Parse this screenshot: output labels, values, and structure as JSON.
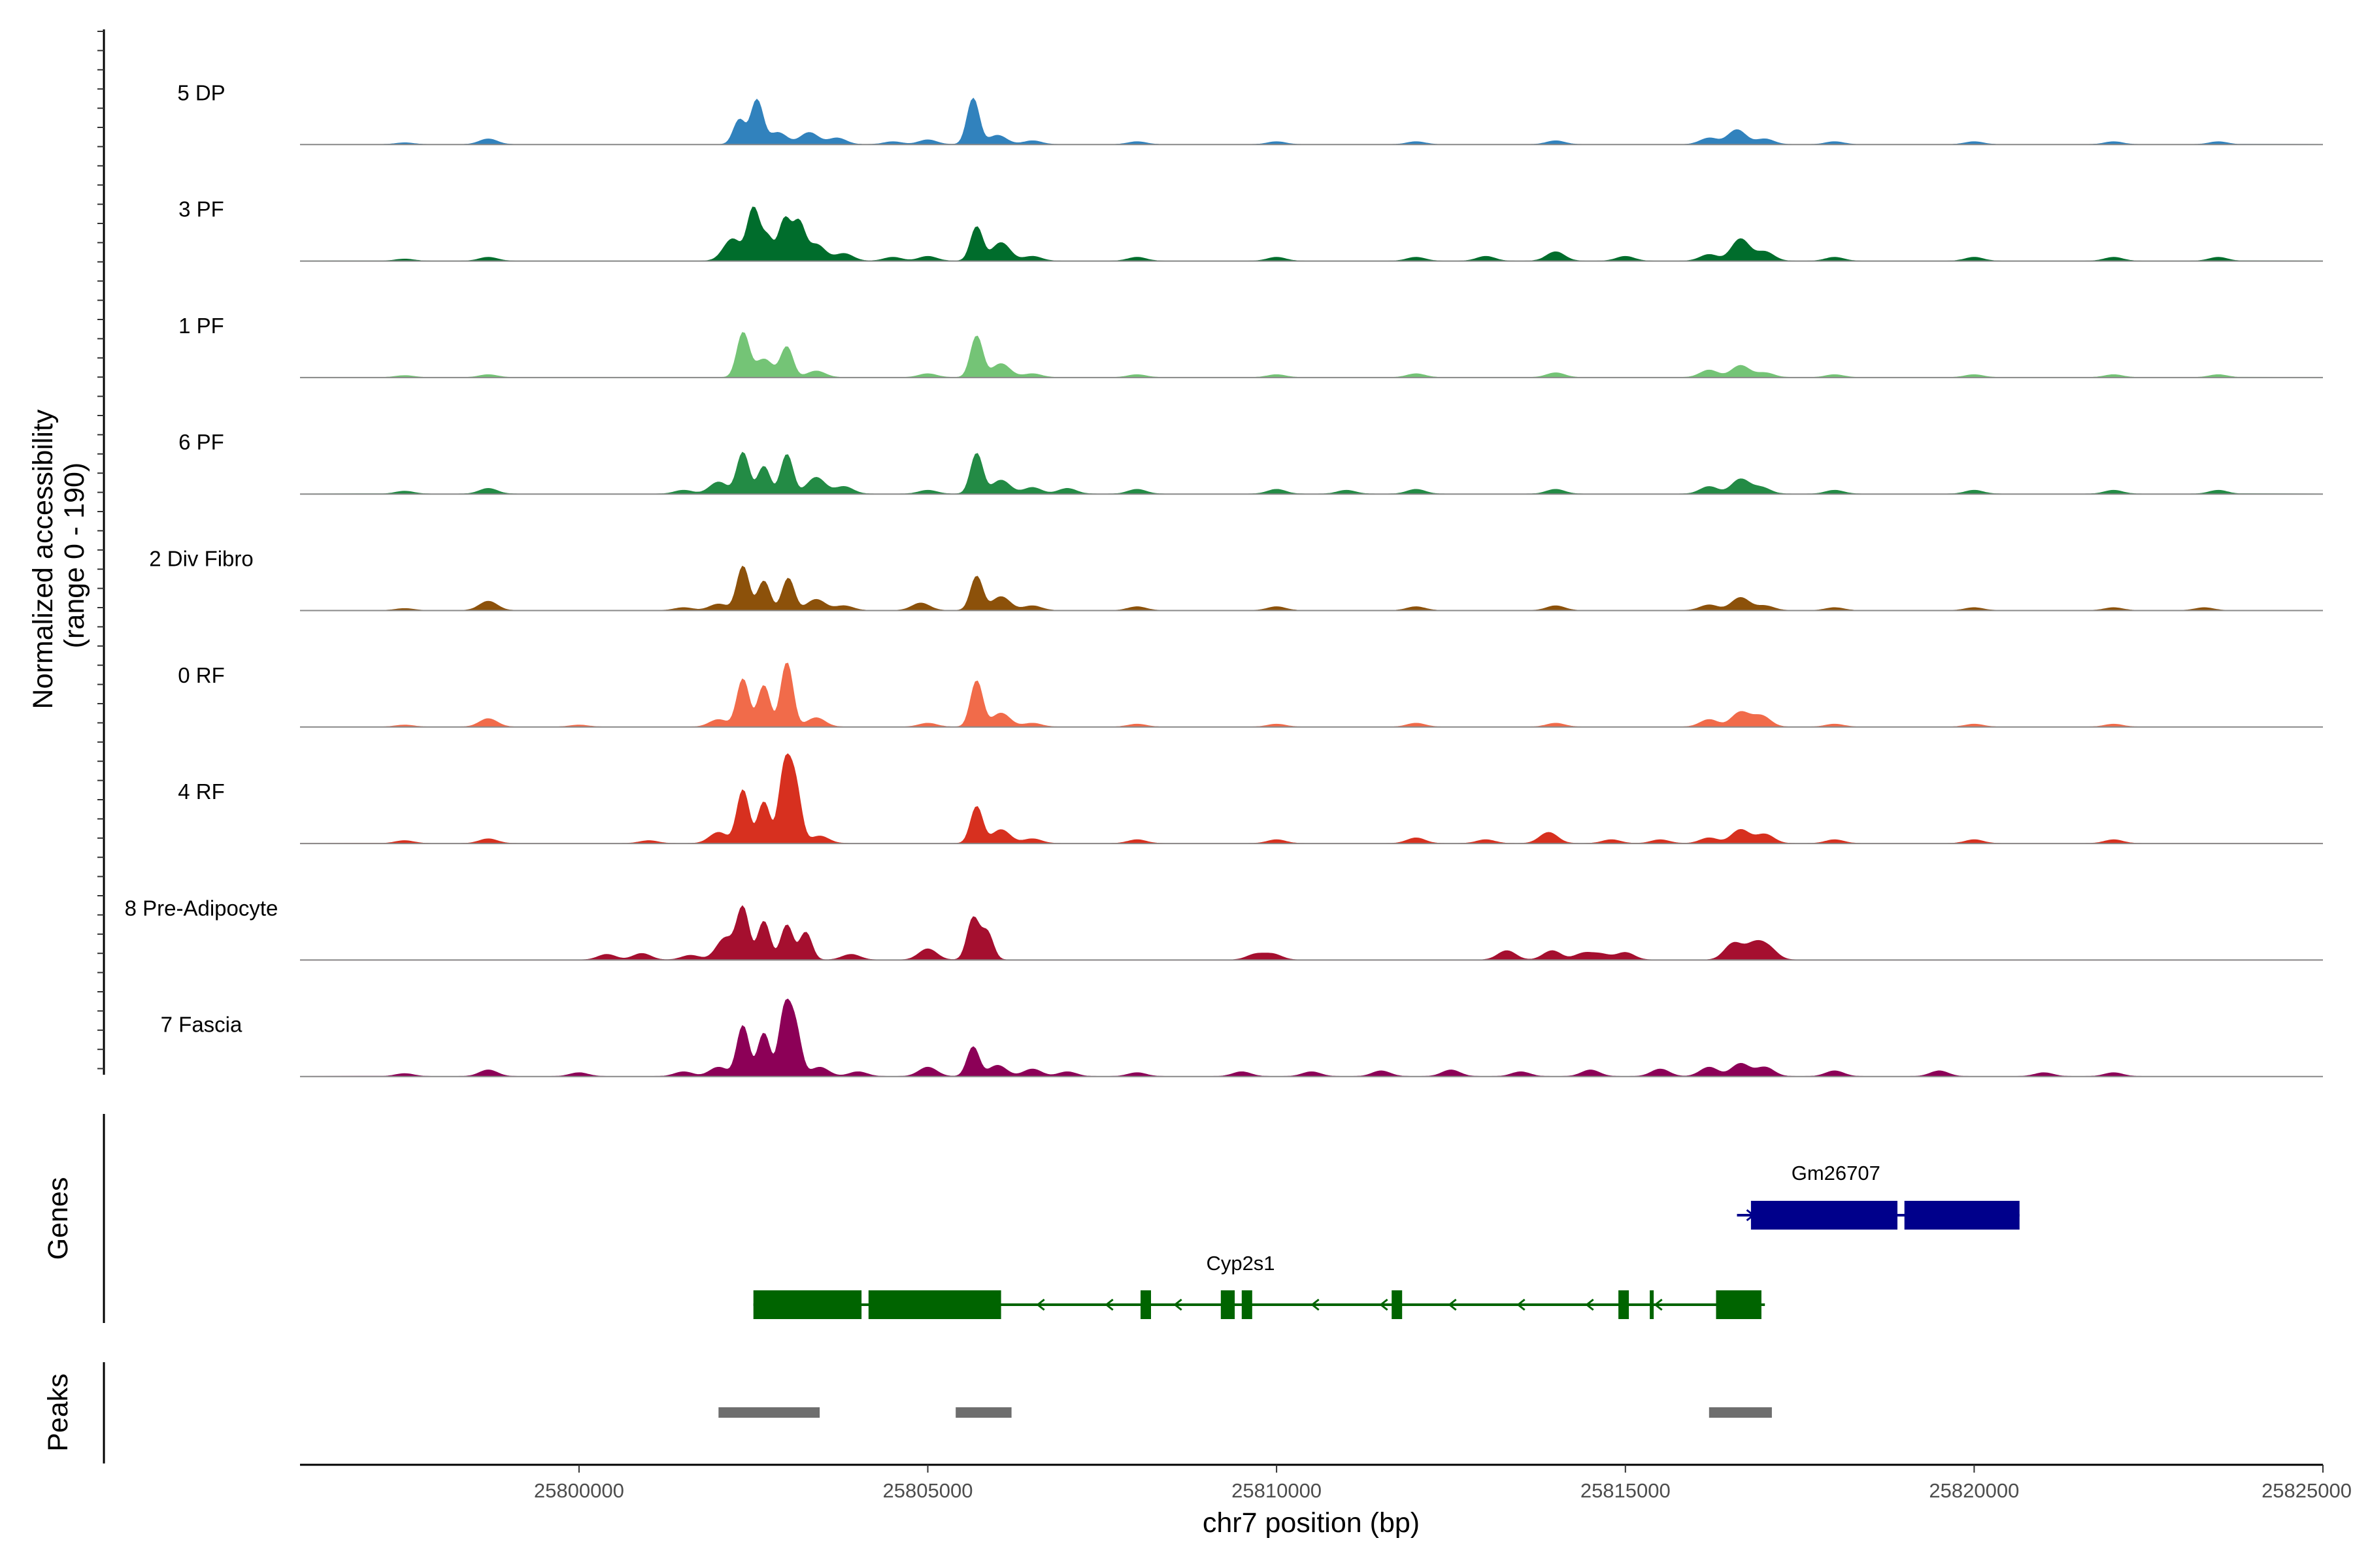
{
  "chart_data": {
    "type": "area",
    "title": "",
    "region": "chr7:25796000-25825000",
    "ylabel_line1": "Normalized accessibility",
    "ylabel_line2": "(range 0 - 190)",
    "y_range": [
      0,
      190
    ],
    "xlabel": "chr7 position (bp)",
    "xlim": [
      25796000,
      25825000
    ],
    "xticks": [
      25800000,
      25805000,
      25810000,
      25815000,
      25820000,
      25825000
    ],
    "xtick_labels": [
      "25800000",
      "25805000",
      "25810000",
      "25815000",
      "25820000",
      "25825000"
    ],
    "tracks": [
      {
        "name": "5 DP",
        "color": "#3182BD",
        "peaks": [
          [
            25797500,
            1.8
          ],
          [
            25798700,
            6
          ],
          [
            25802300,
            27
          ],
          [
            25802550,
            48
          ],
          [
            25802850,
            13
          ],
          [
            25803300,
            13
          ],
          [
            25803700,
            7
          ],
          [
            25804500,
            3
          ],
          [
            25805000,
            5
          ],
          [
            25805650,
            50
          ],
          [
            25806000,
            10
          ],
          [
            25806500,
            4
          ],
          [
            25808000,
            3
          ],
          [
            25810000,
            3
          ],
          [
            25812000,
            3
          ],
          [
            25814000,
            4
          ],
          [
            25816200,
            7
          ],
          [
            25816600,
            16
          ],
          [
            25817000,
            6
          ],
          [
            25818000,
            3
          ],
          [
            25820000,
            3
          ],
          [
            25822000,
            3
          ],
          [
            25823500,
            3
          ]
        ]
      },
      {
        "name": "3 PF",
        "color": "#006D2C",
        "peaks": [
          [
            25797500,
            2
          ],
          [
            25798700,
            4
          ],
          [
            25802200,
            24
          ],
          [
            25802500,
            56
          ],
          [
            25802700,
            26
          ],
          [
            25802950,
            45
          ],
          [
            25803150,
            40
          ],
          [
            25803400,
            18
          ],
          [
            25803800,
            8
          ],
          [
            25804500,
            4
          ],
          [
            25805000,
            5
          ],
          [
            25805700,
            37
          ],
          [
            25806050,
            20
          ],
          [
            25806500,
            5
          ],
          [
            25808000,
            4
          ],
          [
            25810000,
            4
          ],
          [
            25812000,
            4
          ],
          [
            25813000,
            5
          ],
          [
            25814000,
            10
          ],
          [
            25815000,
            5
          ],
          [
            25816200,
            7
          ],
          [
            25816650,
            24
          ],
          [
            25817000,
            10
          ],
          [
            25818000,
            4
          ],
          [
            25820000,
            4
          ],
          [
            25822000,
            4
          ],
          [
            25823500,
            4
          ]
        ]
      },
      {
        "name": "1 PF",
        "color": "#74C476",
        "peaks": [
          [
            25797500,
            2
          ],
          [
            25798700,
            3
          ],
          [
            25802350,
            48
          ],
          [
            25802650,
            20
          ],
          [
            25802980,
            33
          ],
          [
            25803400,
            7
          ],
          [
            25805000,
            4
          ],
          [
            25805700,
            45
          ],
          [
            25806050,
            15
          ],
          [
            25806500,
            4
          ],
          [
            25808000,
            3
          ],
          [
            25810000,
            3
          ],
          [
            25812000,
            4
          ],
          [
            25814000,
            5
          ],
          [
            25816200,
            8
          ],
          [
            25816650,
            13
          ],
          [
            25817000,
            5
          ],
          [
            25818000,
            3
          ],
          [
            25820000,
            3
          ],
          [
            25822000,
            3
          ],
          [
            25823500,
            3
          ]
        ]
      },
      {
        "name": "6 PF",
        "color": "#238B45",
        "peaks": [
          [
            25797500,
            3
          ],
          [
            25798700,
            6
          ],
          [
            25801500,
            4
          ],
          [
            25802000,
            13
          ],
          [
            25802350,
            45
          ],
          [
            25802650,
            30
          ],
          [
            25802980,
            43
          ],
          [
            25803400,
            18
          ],
          [
            25803800,
            8
          ],
          [
            25805000,
            4
          ],
          [
            25805700,
            44
          ],
          [
            25806050,
            15
          ],
          [
            25806500,
            7
          ],
          [
            25807000,
            6
          ],
          [
            25808000,
            5
          ],
          [
            25810000,
            5
          ],
          [
            25811000,
            4
          ],
          [
            25812000,
            5
          ],
          [
            25814000,
            5
          ],
          [
            25816200,
            8
          ],
          [
            25816650,
            16
          ],
          [
            25816950,
            7
          ],
          [
            25818000,
            4
          ],
          [
            25820000,
            4
          ],
          [
            25822000,
            4
          ],
          [
            25823500,
            4
          ]
        ]
      },
      {
        "name": "2 Div Fibro",
        "color": "#8C510A",
        "peaks": [
          [
            25797500,
            2
          ],
          [
            25798700,
            10
          ],
          [
            25801500,
            3
          ],
          [
            25802000,
            7
          ],
          [
            25802350,
            48
          ],
          [
            25802650,
            32
          ],
          [
            25803000,
            35
          ],
          [
            25803400,
            12
          ],
          [
            25803800,
            5
          ],
          [
            25804900,
            8
          ],
          [
            25805700,
            37
          ],
          [
            25806050,
            15
          ],
          [
            25806500,
            5
          ],
          [
            25808000,
            4
          ],
          [
            25810000,
            4
          ],
          [
            25812000,
            4
          ],
          [
            25814000,
            5
          ],
          [
            25816200,
            6
          ],
          [
            25816650,
            14
          ],
          [
            25817000,
            5
          ],
          [
            25818000,
            3
          ],
          [
            25820000,
            3
          ],
          [
            25822000,
            3
          ],
          [
            25823300,
            3
          ]
        ]
      },
      {
        "name": "0 RF",
        "color": "#F16B4A",
        "peaks": [
          [
            25797500,
            2
          ],
          [
            25798700,
            9
          ],
          [
            25800000,
            2
          ],
          [
            25802000,
            8
          ],
          [
            25802350,
            52
          ],
          [
            25802650,
            45
          ],
          [
            25802980,
            70
          ],
          [
            25803400,
            10
          ],
          [
            25805000,
            4
          ],
          [
            25805700,
            50
          ],
          [
            25806050,
            15
          ],
          [
            25806500,
            4
          ],
          [
            25808000,
            3
          ],
          [
            25810000,
            3
          ],
          [
            25812000,
            4
          ],
          [
            25814000,
            4
          ],
          [
            25816200,
            8
          ],
          [
            25816650,
            16
          ],
          [
            25816950,
            12
          ],
          [
            25818000,
            3
          ],
          [
            25820000,
            3
          ],
          [
            25822000,
            3
          ]
        ]
      },
      {
        "name": "4 RF",
        "color": "#D7301F",
        "peaks": [
          [
            25797500,
            3
          ],
          [
            25798700,
            5
          ],
          [
            25801000,
            3
          ],
          [
            25802000,
            12
          ],
          [
            25802350,
            58
          ],
          [
            25802650,
            45
          ],
          [
            25802950,
            80
          ],
          [
            25803100,
            60
          ],
          [
            25803450,
            8
          ],
          [
            25805700,
            40
          ],
          [
            25806050,
            15
          ],
          [
            25806500,
            5
          ],
          [
            25808000,
            4
          ],
          [
            25810000,
            4
          ],
          [
            25812000,
            6
          ],
          [
            25813000,
            4
          ],
          [
            25813900,
            12
          ],
          [
            25814800,
            4
          ],
          [
            25815500,
            4
          ],
          [
            25816200,
            6
          ],
          [
            25816650,
            15
          ],
          [
            25817000,
            10
          ],
          [
            25818000,
            4
          ],
          [
            25820000,
            4
          ],
          [
            25822000,
            4
          ]
        ]
      },
      {
        "name": "8 Pre-Adipocyte",
        "color": "#A50F2F",
        "peaks": [
          [
            25800400,
            6
          ],
          [
            25800900,
            7
          ],
          [
            25801600,
            5
          ],
          [
            25802100,
            24
          ],
          [
            25802350,
            55
          ],
          [
            25802650,
            42
          ],
          [
            25802980,
            38
          ],
          [
            25803250,
            30
          ],
          [
            25803900,
            6
          ],
          [
            25805000,
            12
          ],
          [
            25805650,
            45
          ],
          [
            25805850,
            30
          ],
          [
            25809700,
            6
          ],
          [
            25809950,
            6
          ],
          [
            25813300,
            10
          ],
          [
            25813950,
            10
          ],
          [
            25814400,
            7
          ],
          [
            25814650,
            6
          ],
          [
            25815000,
            8
          ],
          [
            25816550,
            18
          ],
          [
            25816850,
            16
          ],
          [
            25817050,
            12
          ]
        ]
      },
      {
        "name": "7 Fascia",
        "color": "#8C0057",
        "peaks": [
          [
            25797500,
            3
          ],
          [
            25798700,
            7
          ],
          [
            25800000,
            4
          ],
          [
            25801500,
            5
          ],
          [
            25802000,
            10
          ],
          [
            25802350,
            55
          ],
          [
            25802650,
            47
          ],
          [
            25802950,
            70
          ],
          [
            25803100,
            50
          ],
          [
            25803450,
            10
          ],
          [
            25804000,
            5
          ],
          [
            25805000,
            10
          ],
          [
            25805650,
            32
          ],
          [
            25806000,
            12
          ],
          [
            25806500,
            8
          ],
          [
            25807000,
            5
          ],
          [
            25808000,
            4
          ],
          [
            25809500,
            5
          ],
          [
            25810500,
            5
          ],
          [
            25811500,
            6
          ],
          [
            25812500,
            7
          ],
          [
            25813500,
            5
          ],
          [
            25814500,
            7
          ],
          [
            25815500,
            8
          ],
          [
            25816200,
            10
          ],
          [
            25816650,
            14
          ],
          [
            25817000,
            10
          ],
          [
            25818000,
            6
          ],
          [
            25819500,
            6
          ],
          [
            25821000,
            4
          ],
          [
            25822000,
            4
          ]
        ]
      }
    ],
    "genes_label": "Genes",
    "genes": [
      {
        "name": "Cyp2s1",
        "color": "#006400",
        "strand": "-",
        "start": 25802500,
        "end": 25817000,
        "exons": [
          [
            25802500,
            25804050
          ],
          [
            25804150,
            25806050
          ],
          [
            25808050,
            25808200
          ],
          [
            25809200,
            25809400
          ],
          [
            25809500,
            25809650
          ],
          [
            25811650,
            25811800
          ],
          [
            25814900,
            25815050
          ],
          [
            25815350,
            25815400
          ],
          [
            25816300,
            25816950
          ]
        ]
      },
      {
        "name": "Gm26707",
        "color": "#00008B",
        "strand": "+",
        "start": 25816600,
        "end": 25820650,
        "exons": [
          [
            25816800,
            25818900
          ],
          [
            25819000,
            25820650
          ]
        ]
      }
    ],
    "peaks_label": "Peaks",
    "peak_regions": [
      [
        25802000,
        25803450
      ],
      [
        25805400,
        25806200
      ],
      [
        25816200,
        25817100
      ]
    ],
    "peak_color": "#6E6E6E"
  }
}
